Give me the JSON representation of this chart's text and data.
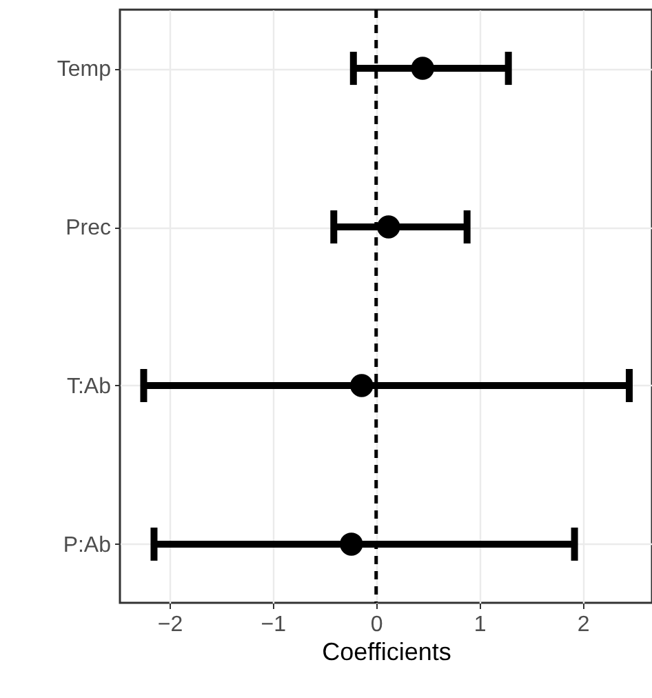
{
  "chart_data": {
    "type": "scatter",
    "orientation": "horizontal",
    "xlabel": "Coefficients",
    "categories": [
      "Temp",
      "Prec",
      "T:Ab",
      "P:Ab"
    ],
    "values": [
      0.45,
      0.12,
      -0.14,
      -0.24
    ],
    "errors": [
      [
        -0.22,
        1.28
      ],
      [
        -0.41,
        0.88
      ],
      [
        -2.25,
        2.45
      ],
      [
        -2.15,
        1.92
      ]
    ],
    "color": "#000000",
    "marker": "circle",
    "xlim": [
      -2.48,
      2.67
    ],
    "xticks": [
      -2,
      -1,
      0,
      1,
      2
    ],
    "ref_lines": [
      {
        "axis": "x",
        "value": 0,
        "line_style": "dashed",
        "color": "#000000"
      }
    ],
    "grid": true
  }
}
